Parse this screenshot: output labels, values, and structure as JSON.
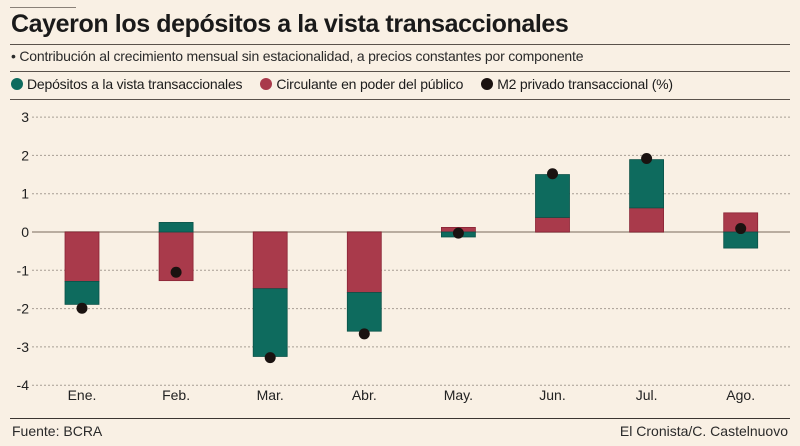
{
  "header": {
    "title": "Cayeron los depósitos a la vista transaccionales",
    "subtitle": "• Contribución al crecimiento mensual sin estacionalidad, a precios constantes por componente"
  },
  "legend": [
    {
      "label": "Depósitos a la vista transaccionales",
      "color": "#0e6b5e"
    },
    {
      "label": "Circulante en poder del público",
      "color": "#a93a4b"
    },
    {
      "label": "M2 privado transaccional (%)",
      "color": "#1a1210"
    }
  ],
  "footer": {
    "source": "Fuente: BCRA",
    "credit": "El Cronista/C. Castelnuovo"
  },
  "chart_data": {
    "type": "bar",
    "stacked": true,
    "title": "Cayeron los depósitos a la vista transaccionales",
    "subtitle": "Contribución al crecimiento mensual sin estacionalidad, a precios constantes por componente",
    "xlabel": "",
    "ylabel": "",
    "categories": [
      "Ene.",
      "Feb.",
      "Mar.",
      "Abr.",
      "May.",
      "Jun.",
      "Jul.",
      "Ago."
    ],
    "ylim": [
      -4,
      3
    ],
    "yticks": [
      3,
      2,
      1,
      0,
      -1,
      -2,
      -3,
      -4
    ],
    "grid": true,
    "legend_position": "top",
    "series": [
      {
        "name": "Circulante en poder del público",
        "kind": "bar",
        "color": "#a93a4b",
        "values": [
          -1.29,
          -1.27,
          -1.48,
          -1.58,
          0.12,
          0.38,
          0.63,
          0.5
        ]
      },
      {
        "name": "Depósitos a la vista transaccionales",
        "kind": "bar",
        "color": "#0e6b5e",
        "values": [
          -0.6,
          0.25,
          -1.77,
          -1.01,
          -0.13,
          1.12,
          1.26,
          -0.42
        ]
      },
      {
        "name": "M2 privado transaccional (%)",
        "kind": "dot",
        "color": "#1a1210",
        "values": [
          -1.99,
          -1.05,
          -3.28,
          -2.66,
          -0.03,
          1.52,
          1.92,
          0.09
        ]
      }
    ]
  }
}
